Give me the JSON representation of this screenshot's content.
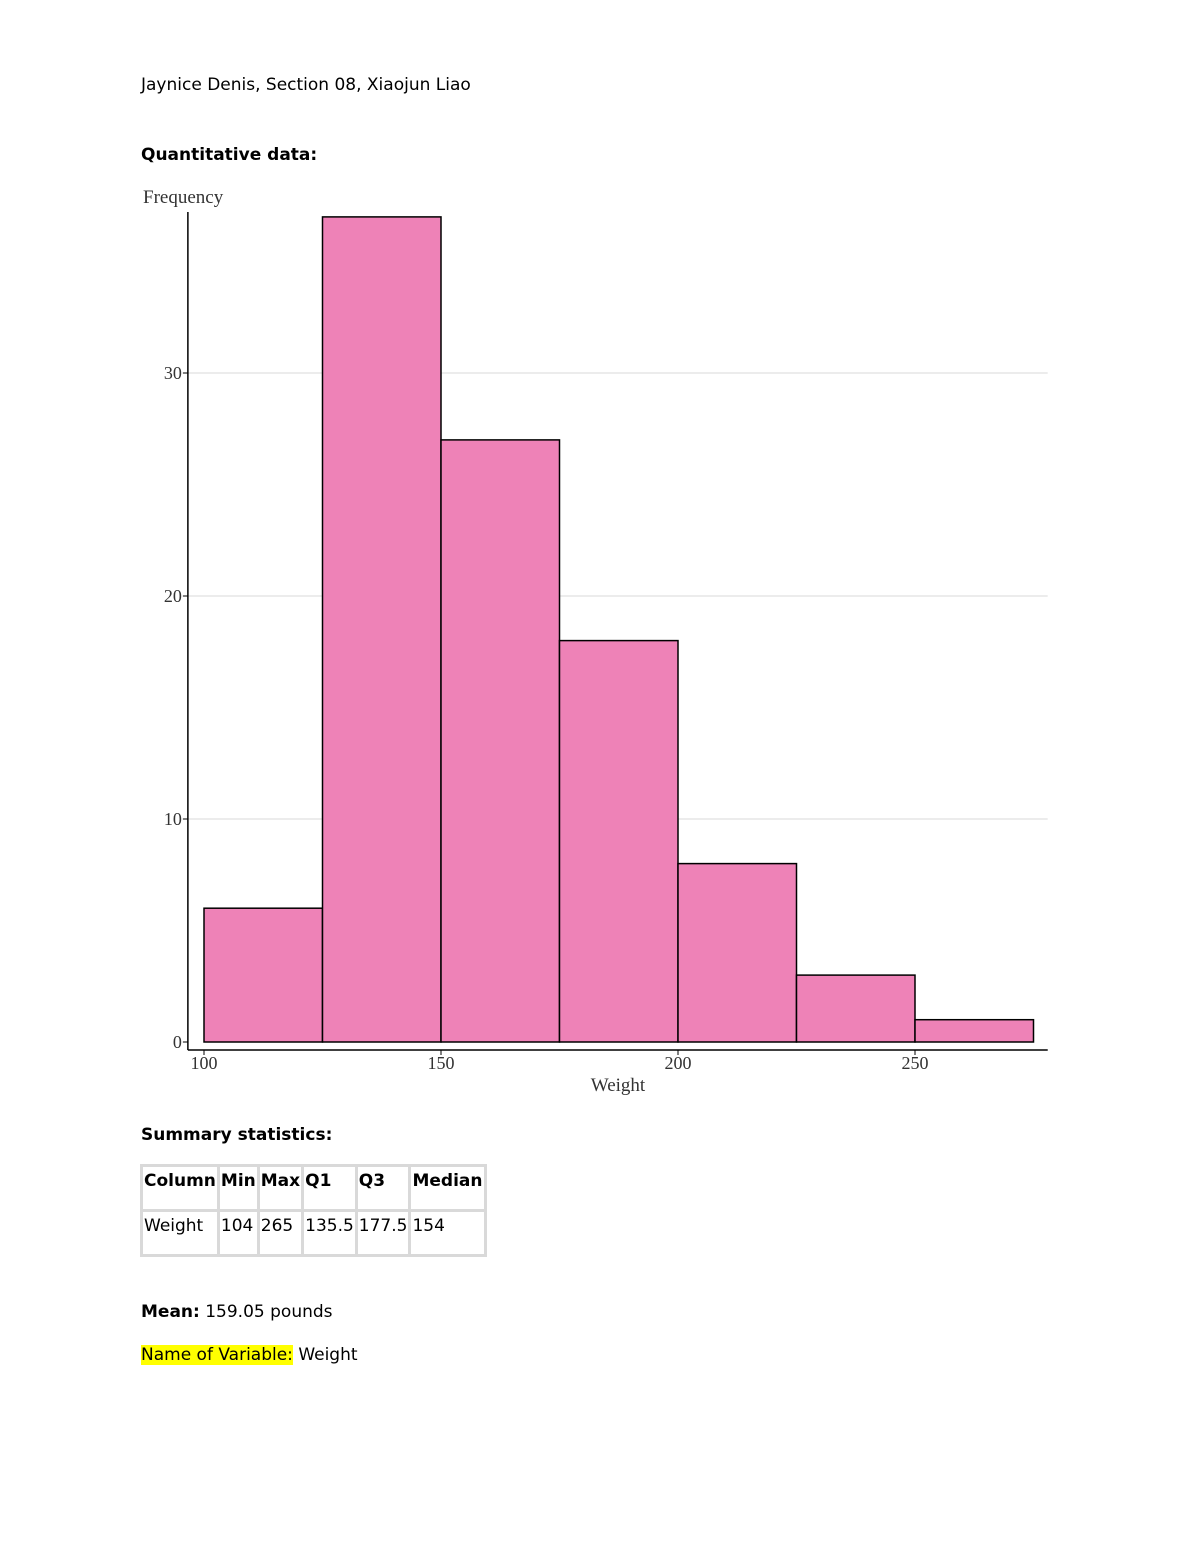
{
  "header": {
    "line": "Jaynice Denis, Section 08, Xiaojun Liao"
  },
  "quant_heading": "Quantitative data:",
  "chart_data": {
    "type": "bar",
    "subtype": "histogram",
    "bins": [
      [
        100,
        125
      ],
      [
        125,
        150
      ],
      [
        150,
        175
      ],
      [
        175,
        200
      ],
      [
        200,
        225
      ],
      [
        225,
        250
      ],
      [
        250,
        275
      ]
    ],
    "values": [
      6,
      37,
      27,
      18,
      8,
      3,
      1
    ],
    "xlabel": "Weight",
    "ylabel": "Frequency",
    "xticks": [
      100,
      150,
      200,
      250
    ],
    "yticks": [
      0,
      10,
      20,
      30
    ],
    "xlim": [
      96.6,
      278
    ],
    "ylim": [
      -0.4,
      37.5
    ],
    "grid": "horizontal",
    "colors": {
      "bar": "#ee82b7",
      "edge": "#000000",
      "grid": "#e6e6e6"
    }
  },
  "summary_heading": "Summary statistics:",
  "table": {
    "headers": [
      "Column",
      "Min",
      "Max",
      "Q1",
      "Q3",
      "Median"
    ],
    "row": [
      "Weight",
      "104",
      "265",
      "135.5",
      "177.5",
      "154"
    ]
  },
  "mean": {
    "label": "Mean:",
    "value": "159.05 pounds"
  },
  "variable": {
    "label": "Name of Variable:",
    "value": "Weight",
    "highlight": "#ffff00"
  }
}
